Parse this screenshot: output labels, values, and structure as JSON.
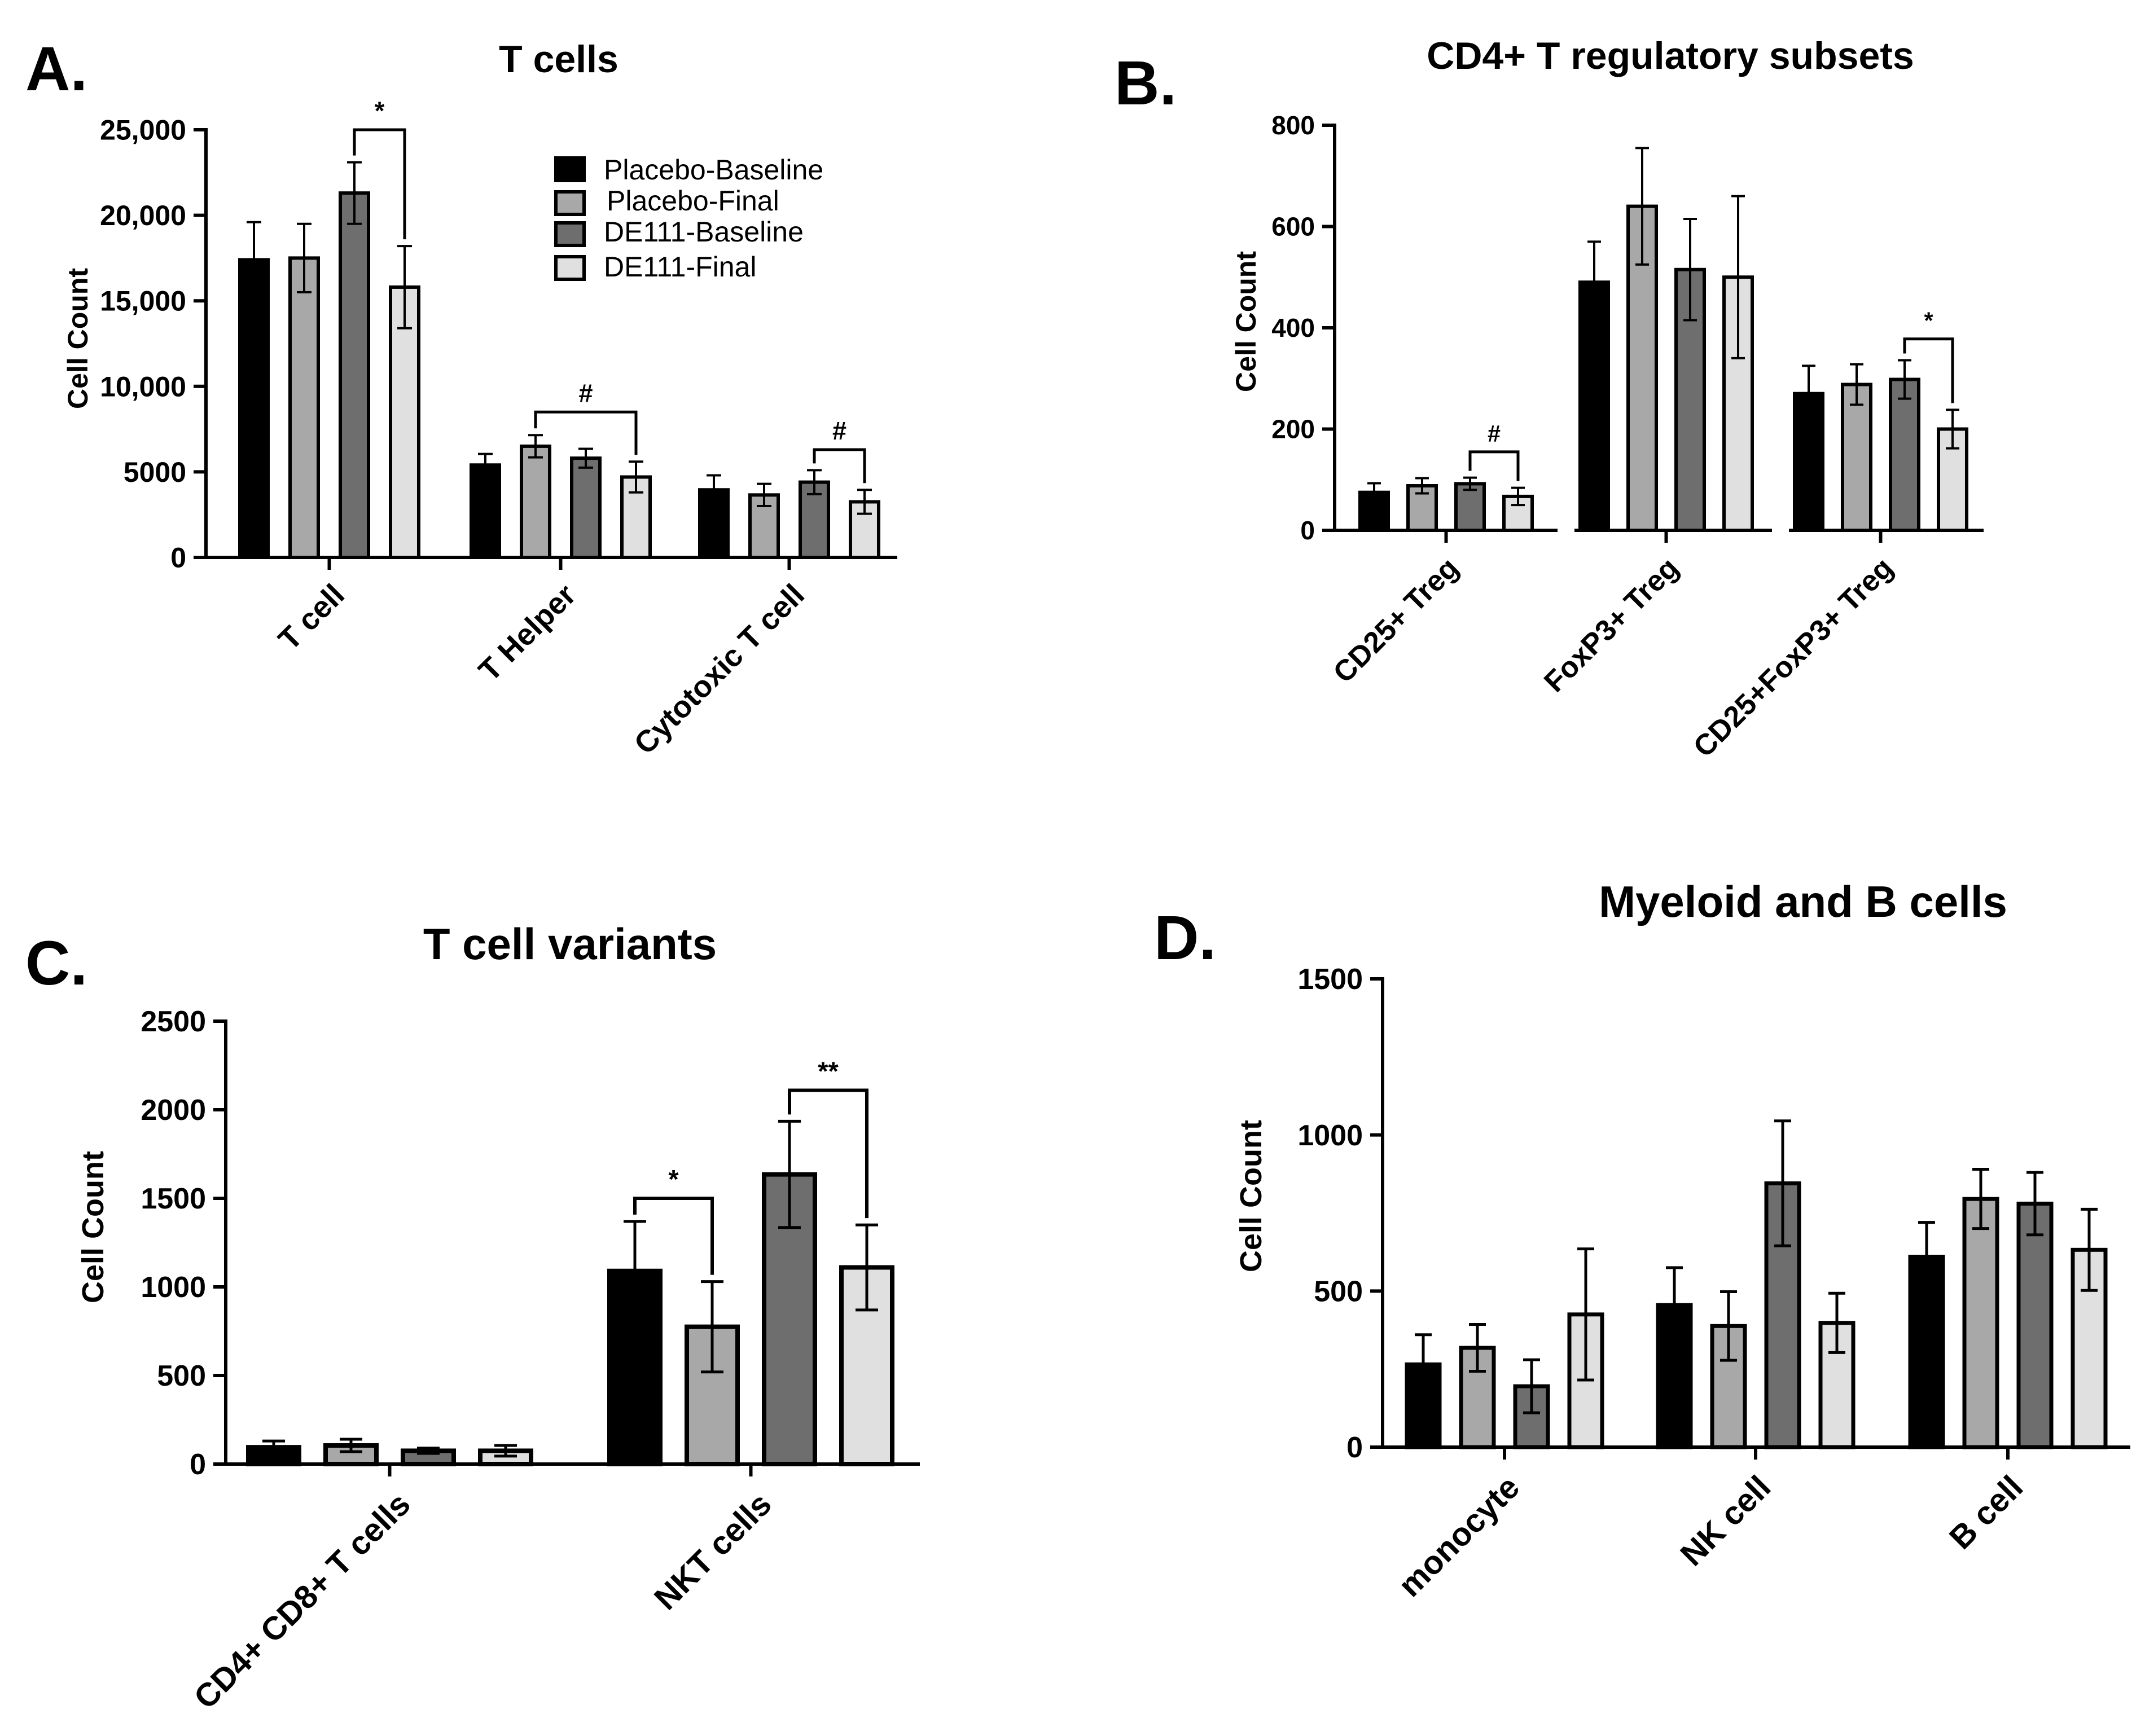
{
  "figure": {
    "legend": {
      "entries": [
        "Placebo-Baseline",
        "Placebo-Final",
        "DE111-Baseline",
        "DE111-Final"
      ]
    },
    "series_colors": [
      "#000000",
      "#a8a8a8",
      "#6e6e6e",
      "#e0e0e0"
    ]
  },
  "chart_data": [
    {
      "type": "bar",
      "panel_label": "A.",
      "title": "T cells",
      "ylabel": "Cell Count",
      "ylim": [
        0,
        25000
      ],
      "yticks": [
        0,
        5000,
        10000,
        15000,
        20000,
        25000
      ],
      "ytick_labels": [
        "0",
        "5000",
        "10,000",
        "15,000",
        "20,000",
        "25,000"
      ],
      "categories": [
        "T cell",
        "T Helper",
        "Cytotoxic T cell"
      ],
      "series": [
        {
          "name": "Placebo-Baseline",
          "values": [
            17400,
            5400,
            3950
          ],
          "errors": [
            2200,
            650,
            850
          ]
        },
        {
          "name": "Placebo-Final",
          "values": [
            17500,
            6500,
            3650
          ],
          "errors": [
            2000,
            650,
            650
          ]
        },
        {
          "name": "DE111-Baseline",
          "values": [
            21300,
            5800,
            4400
          ],
          "errors": [
            1800,
            550,
            700
          ]
        },
        {
          "name": "DE111-Final",
          "values": [
            15800,
            4700,
            3250
          ],
          "errors": [
            2400,
            900,
            700
          ]
        }
      ],
      "annotations": [
        {
          "text": "*",
          "category": 0,
          "from_series": 2,
          "to_series": 3,
          "y": 25000
        },
        {
          "text": "#",
          "category": 1,
          "from_series": 1,
          "to_series": 3,
          "y": 8500
        },
        {
          "text": "#",
          "category": 2,
          "from_series": 2,
          "to_series": 3,
          "y": 6300
        }
      ]
    },
    {
      "type": "bar",
      "panel_label": "B.",
      "title": "CD4+ T regulatory subsets",
      "ylabel": "Cell Count",
      "ylim": [
        0,
        800
      ],
      "yticks": [
        0,
        200,
        400,
        600,
        800
      ],
      "ytick_labels": [
        "0",
        "200",
        "400",
        "600",
        "800"
      ],
      "categories": [
        "CD25+ Treg",
        "FoxP3+ Treg",
        "CD25+FoxP3+ Treg"
      ],
      "series": [
        {
          "name": "Placebo-Baseline",
          "values": [
            75,
            490,
            270
          ],
          "errors": [
            18,
            80,
            55
          ]
        },
        {
          "name": "Placebo-Final",
          "values": [
            88,
            640,
            288
          ],
          "errors": [
            15,
            115,
            40
          ]
        },
        {
          "name": "DE111-Baseline",
          "values": [
            92,
            515,
            298
          ],
          "errors": [
            12,
            100,
            38
          ]
        },
        {
          "name": "DE111-Final",
          "values": [
            67,
            500,
            200
          ],
          "errors": [
            17,
            160,
            38
          ]
        }
      ],
      "annotations": [
        {
          "text": "#",
          "category": 0,
          "from_series": 2,
          "to_series": 3,
          "y": 155
        },
        {
          "text": "*",
          "category": 2,
          "from_series": 2,
          "to_series": 3,
          "y": 378
        }
      ]
    },
    {
      "type": "bar",
      "panel_label": "C.",
      "title": "T cell variants",
      "ylabel": "Cell Count",
      "ylim": [
        0,
        2500
      ],
      "yticks": [
        0,
        500,
        1000,
        1500,
        2000,
        2500
      ],
      "ytick_labels": [
        "0",
        "500",
        "1000",
        "1500",
        "2000",
        "2500"
      ],
      "categories": [
        "CD4+ CD8+ T cells",
        "NKT cells"
      ],
      "series": [
        {
          "name": "Placebo-Baseline",
          "values": [
            95,
            1090
          ],
          "errors": [
            35,
            280
          ]
        },
        {
          "name": "Placebo-Final",
          "values": [
            105,
            775
          ],
          "errors": [
            35,
            255
          ]
        },
        {
          "name": "DE111-Baseline",
          "values": [
            75,
            1635
          ],
          "errors": [
            15,
            300
          ]
        },
        {
          "name": "DE111-Final",
          "values": [
            75,
            1110
          ],
          "errors": [
            30,
            240
          ]
        }
      ],
      "annotations": [
        {
          "text": "*",
          "category": 1,
          "from_series": 0,
          "to_series": 1,
          "y": 1500
        },
        {
          "text": "**",
          "category": 1,
          "from_series": 2,
          "to_series": 3,
          "y": 2110
        }
      ]
    },
    {
      "type": "bar",
      "panel_label": "D.",
      "title": "Myeloid and B cells",
      "ylabel": "Cell Count",
      "ylim": [
        0,
        1500
      ],
      "yticks": [
        0,
        500,
        1000,
        1500
      ],
      "ytick_labels": [
        "0",
        "500",
        "1000",
        "1500"
      ],
      "categories": [
        "monocyte",
        "NK cell",
        "B cell"
      ],
      "series": [
        {
          "name": "Placebo-Baseline",
          "values": [
            265,
            455,
            610
          ],
          "errors": [
            95,
            120,
            110
          ]
        },
        {
          "name": "Placebo-Final",
          "values": [
            318,
            388,
            795
          ],
          "errors": [
            75,
            110,
            95
          ]
        },
        {
          "name": "DE111-Baseline",
          "values": [
            195,
            845,
            780
          ],
          "errors": [
            85,
            200,
            100
          ]
        },
        {
          "name": "DE111-Final",
          "values": [
            425,
            398,
            632
          ],
          "errors": [
            210,
            95,
            130
          ]
        }
      ],
      "annotations": []
    }
  ]
}
